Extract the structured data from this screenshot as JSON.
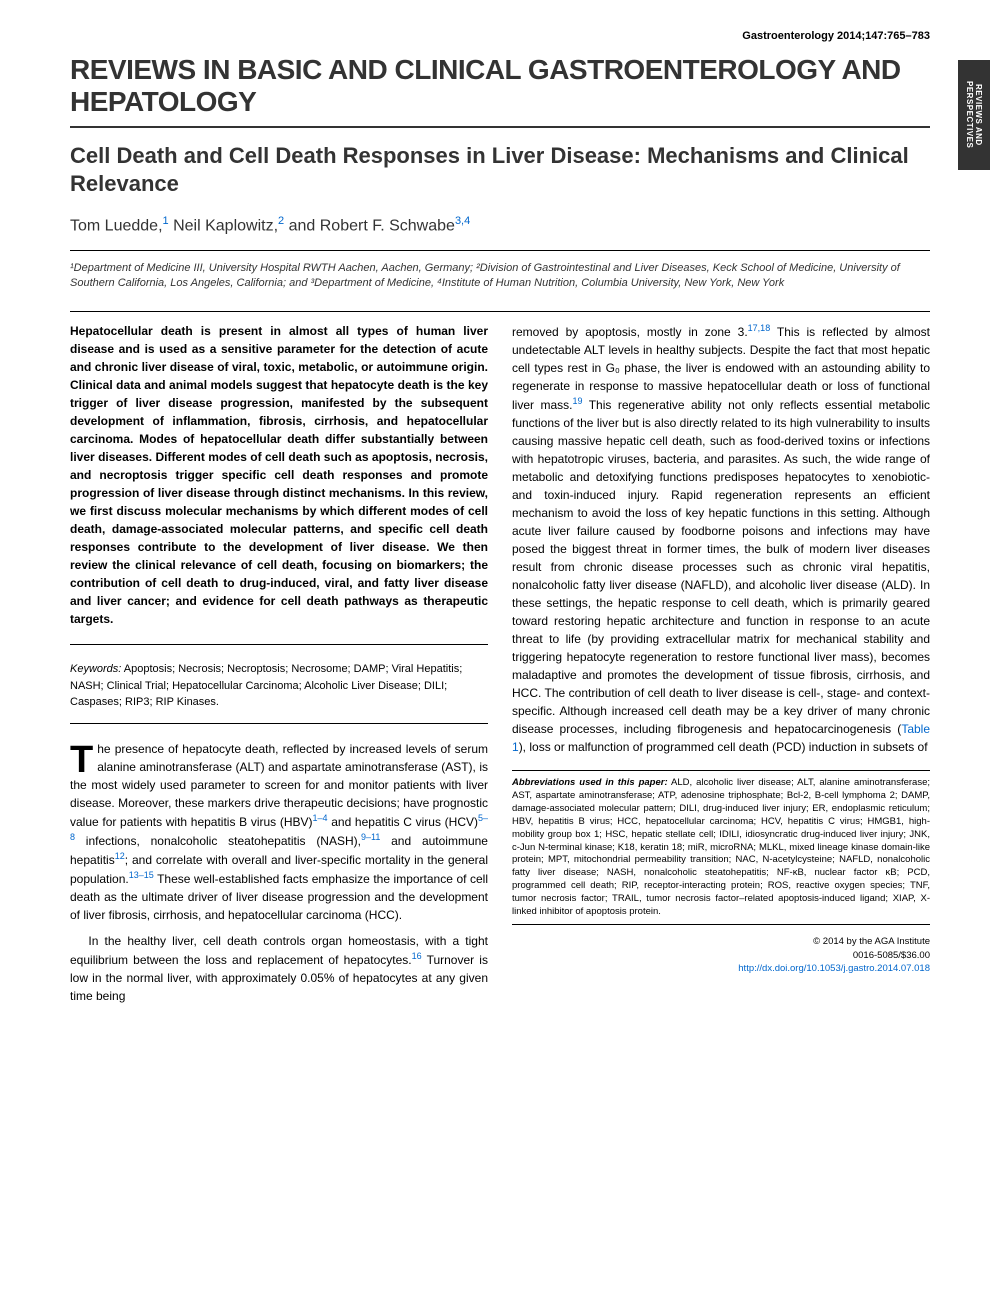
{
  "journal_header": "Gastroenterology 2014;147:765–783",
  "side_tab": "REVIEWS AND PERSPECTIVES",
  "section_title": "REVIEWS IN BASIC AND CLINICAL GASTROENTEROLOGY AND HEPATOLOGY",
  "article_title": "Cell Death and Cell Death Responses in Liver Disease: Mechanisms and Clinical Relevance",
  "authors": {
    "a1": {
      "name": "Tom Luedde,",
      "sup": "1"
    },
    "a2": {
      "name": " Neil Kaplowitz,",
      "sup": "2"
    },
    "a3": {
      "name": " and Robert F. Schwabe",
      "sup": "3,4"
    }
  },
  "affiliations": "¹Department of Medicine III, University Hospital RWTH Aachen, Aachen, Germany; ²Division of Gastrointestinal and Liver Diseases, Keck School of Medicine, University of Southern California, Los Angeles, California; and ³Department of Medicine, ⁴Institute of Human Nutrition, Columbia University, New York, New York",
  "abstract": "Hepatocellular death is present in almost all types of human liver disease and is used as a sensitive parameter for the detection of acute and chronic liver disease of viral, toxic, metabolic, or autoimmune origin. Clinical data and animal models suggest that hepatocyte death is the key trigger of liver disease progression, manifested by the subsequent development of inflammation, fibrosis, cirrhosis, and hepatocellular carcinoma. Modes of hepatocellular death differ substantially between liver diseases. Different modes of cell death such as apoptosis, necrosis, and necroptosis trigger specific cell death responses and promote progression of liver disease through distinct mechanisms. In this review, we first discuss molecular mechanisms by which different modes of cell death, damage-associated molecular patterns, and specific cell death responses contribute to the development of liver disease. We then review the clinical relevance of cell death, focusing on biomarkers; the contribution of cell death to drug-induced, viral, and fatty liver disease and liver cancer; and evidence for cell death pathways as therapeutic targets.",
  "keywords_label": "Keywords:",
  "keywords": " Apoptosis; Necrosis; Necroptosis; Necrosome; DAMP; Viral Hepatitis; NASH; Clinical Trial; Hepatocellular Carcinoma; Alcoholic Liver Disease; DILI; Caspases; RIP3; RIP Kinases.",
  "col1_p1_dropcap": "T",
  "col1_p1_start": "he presence of hepatocyte death, reflected by increased levels of serum alanine aminotransferase (ALT) and aspartate aminotransferase (AST), is the most widely used parameter to screen for and monitor patients with liver disease. Moreover, these markers drive therapeutic decisions; have prognostic value for patients with hepatitis B virus (HBV)",
  "col1_p1_sup1": "1–4",
  "col1_p1_mid1": " and hepatitis C virus (HCV)",
  "col1_p1_sup2": "5–8",
  "col1_p1_mid2": " infections, nonalcoholic steatohepatitis (NASH),",
  "col1_p1_sup3": "9–11",
  "col1_p1_mid3": " and autoimmune hepatitis",
  "col1_p1_sup4": "12",
  "col1_p1_mid4": "; and correlate with overall and liver-specific mortality in the general population.",
  "col1_p1_sup5": "13–15",
  "col1_p1_end": " These well-established facts emphasize the importance of cell death as the ultimate driver of liver disease progression and the development of liver fibrosis, cirrhosis, and hepatocellular carcinoma (HCC).",
  "col1_p2_start": "In the healthy liver, cell death controls organ homeostasis, with a tight equilibrium between the loss and replacement of hepatocytes.",
  "col1_p2_sup1": "16",
  "col1_p2_end": " Turnover is low in the normal liver, with approximately 0.05% of hepatocytes at any given time being",
  "col2_p1_start": "removed by apoptosis, mostly in zone 3.",
  "col2_p1_sup1": "17,18",
  "col2_p1_mid1": " This is reflected by almost undetectable ALT levels in healthy subjects. Despite the fact that most hepatic cell types rest in G₀ phase, the liver is endowed with an astounding ability to regenerate in response to massive hepatocellular death or loss of functional liver mass.",
  "col2_p1_sup2": "19",
  "col2_p1_mid2": " This regenerative ability not only reflects essential metabolic functions of the liver but is also directly related to its high vulnerability to insults causing massive hepatic cell death, such as food-derived toxins or infections with hepatotropic viruses, bacteria, and parasites. As such, the wide range of metabolic and detoxifying functions predisposes hepatocytes to xenobiotic- and toxin-induced injury. Rapid regeneration represents an efficient mechanism to avoid the loss of key hepatic functions in this setting. Although acute liver failure caused by foodborne poisons and infections may have posed the biggest threat in former times, the bulk of modern liver diseases result from chronic disease processes such as chronic viral hepatitis, nonalcoholic fatty liver disease (NAFLD), and alcoholic liver disease (ALD). In these settings, the hepatic response to cell death, which is primarily geared toward restoring hepatic architecture and function in response to an acute threat to life (by providing extracellular matrix for mechanical stability and triggering hepatocyte regeneration to restore functional liver mass), becomes maladaptive and promotes the development of tissue fibrosis, cirrhosis, and HCC. The contribution of cell death to liver disease is cell-, stage- and context-specific. Although increased cell death may be a key driver of many chronic disease processes, including fibrogenesis and hepatocarcinogenesis (",
  "col2_p1_table_link": "Table 1",
  "col2_p1_end": "), loss or malfunction of programmed cell death (PCD) induction in subsets of",
  "abbrev_label": "Abbreviations used in this paper:",
  "abbrev_text": " ALD, alcoholic liver disease; ALT, alanine aminotransferase; AST, aspartate aminotransferase; ATP, adenosine triphosphate; Bcl-2, B-cell lymphoma 2; DAMP, damage-associated molecular pattern; DILI, drug-induced liver injury; ER, endoplasmic reticulum; HBV, hepatitis B virus; HCC, hepatocellular carcinoma; HCV, hepatitis C virus; HMGB1, high-mobility group box 1; HSC, hepatic stellate cell; IDILI, idiosyncratic drug-induced liver injury; JNK, c-Jun N-terminal kinase; K18, keratin 18; miR, microRNA; MLKL, mixed lineage kinase domain-like protein; MPT, mitochondrial permeability transition; NAC, N-acetylcysteine; NAFLD, nonalcoholic fatty liver disease; NASH, nonalcoholic steatohepatitis; NF-κB, nuclear factor κB; PCD, programmed cell death; RIP, receptor-interacting protein; ROS, reactive oxygen species; TNF, tumor necrosis factor; TRAIL, tumor necrosis factor–related apoptosis-induced ligand; XIAP, X-linked inhibitor of apoptosis protein.",
  "copyright_line1": "© 2014 by the AGA Institute",
  "copyright_line2": "0016-5085/$36.00",
  "copyright_doi": "http://dx.doi.org/10.1053/j.gastro.2014.07.018",
  "colors": {
    "link": "#0066cc",
    "text": "#000000",
    "side_tab_bg": "#333333"
  }
}
